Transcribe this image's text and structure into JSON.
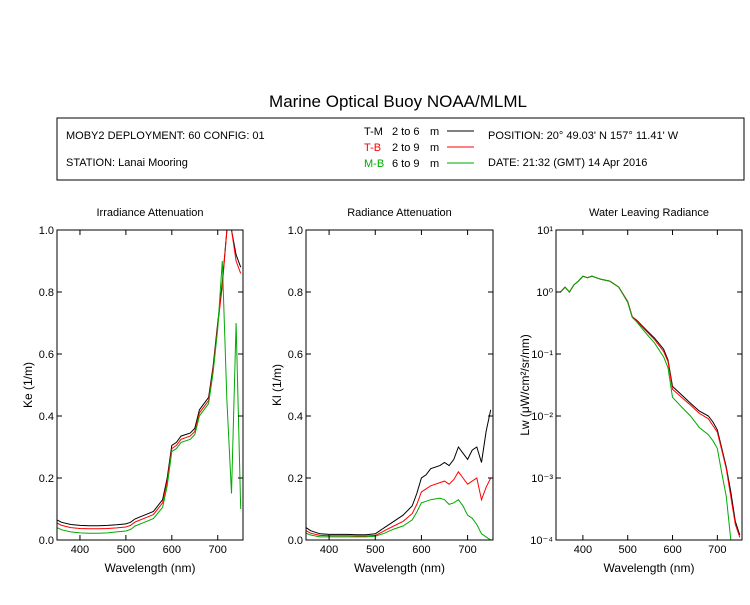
{
  "title": "Marine Optical Buoy NOAA/MLML",
  "info": {
    "deployment": "MOBY2 DEPLOYMENT: 60 CONFIG: 01",
    "station": "STATION: Lanai Mooring",
    "position": "POSITION: 20° 49.03' N   157° 11.41' W",
    "date": "DATE: 21:32 (GMT) 14 Apr 2016",
    "legend": [
      {
        "key": "T-M",
        "range": "2 to 6",
        "unit": "m",
        "color": "#000000"
      },
      {
        "key": "T-B",
        "range": "2 to 9",
        "unit": "m",
        "color": "#ff0000"
      },
      {
        "key": "M-B",
        "range": "6 to 9",
        "unit": "m",
        "color": "#00aa00"
      }
    ]
  },
  "chart_data": [
    {
      "type": "line",
      "title": "Irradiance Attenuation",
      "xlabel": "Wavelength (nm)",
      "ylabel": "Ke  (1/m)",
      "xlim": [
        350,
        755
      ],
      "ylim": [
        0,
        1
      ],
      "xticks": [
        400,
        500,
        600,
        700
      ],
      "yticks": [
        "0.0",
        "0.2",
        "0.4",
        "0.6",
        "0.8",
        "1.0"
      ],
      "ytick_values": [
        0,
        0.2,
        0.4,
        0.6,
        0.8,
        1.0
      ],
      "x": [
        350,
        360,
        380,
        400,
        420,
        440,
        460,
        480,
        500,
        510,
        520,
        540,
        560,
        580,
        590,
        600,
        610,
        620,
        640,
        650,
        660,
        670,
        680,
        690,
        700,
        710,
        720,
        730,
        740,
        750
      ],
      "series": [
        {
          "name": "T-M",
          "color": "#000000",
          "values": [
            0.065,
            0.057,
            0.05,
            0.047,
            0.046,
            0.046,
            0.047,
            0.049,
            0.052,
            0.057,
            0.068,
            0.08,
            0.092,
            0.13,
            0.2,
            0.305,
            0.315,
            0.335,
            0.345,
            0.36,
            0.42,
            0.44,
            0.46,
            0.56,
            0.7,
            0.83,
            1.0,
            1.0,
            0.92,
            0.88
          ]
        },
        {
          "name": "T-B",
          "color": "#ff0000",
          "values": [
            0.055,
            0.047,
            0.04,
            0.037,
            0.036,
            0.036,
            0.037,
            0.039,
            0.042,
            0.047,
            0.058,
            0.07,
            0.082,
            0.12,
            0.19,
            0.295,
            0.305,
            0.325,
            0.335,
            0.35,
            0.41,
            0.43,
            0.45,
            0.55,
            0.69,
            0.82,
            1.0,
            1.0,
            0.9,
            0.86
          ]
        },
        {
          "name": "M-B",
          "color": "#00aa00",
          "values": [
            0.04,
            0.033,
            0.026,
            0.023,
            0.022,
            0.022,
            0.023,
            0.026,
            0.029,
            0.034,
            0.045,
            0.057,
            0.069,
            0.105,
            0.175,
            0.285,
            0.295,
            0.315,
            0.325,
            0.34,
            0.4,
            0.42,
            0.44,
            0.54,
            0.68,
            0.9,
            0.45,
            0.15,
            0.7,
            0.1
          ]
        }
      ]
    },
    {
      "type": "line",
      "title": "Radiance Attenuation",
      "xlabel": "Wavelength (nm)",
      "ylabel": "Kl  (1/m)",
      "xlim": [
        350,
        755
      ],
      "ylim": [
        0,
        1
      ],
      "xticks": [
        400,
        500,
        600,
        700
      ],
      "yticks": [
        "0.0",
        "0.2",
        "0.4",
        "0.6",
        "0.8",
        "1.0"
      ],
      "ytick_values": [
        0,
        0.2,
        0.4,
        0.6,
        0.8,
        1.0
      ],
      "x": [
        350,
        360,
        380,
        400,
        420,
        440,
        460,
        480,
        500,
        510,
        520,
        540,
        560,
        580,
        590,
        600,
        610,
        620,
        640,
        650,
        660,
        670,
        680,
        690,
        700,
        710,
        720,
        730,
        740,
        750
      ],
      "series": [
        {
          "name": "T-M",
          "color": "#000000",
          "values": [
            0.04,
            0.03,
            0.02,
            0.018,
            0.018,
            0.018,
            0.017,
            0.017,
            0.02,
            0.03,
            0.04,
            0.06,
            0.08,
            0.11,
            0.15,
            0.2,
            0.21,
            0.23,
            0.24,
            0.25,
            0.24,
            0.26,
            0.3,
            0.28,
            0.26,
            0.29,
            0.3,
            0.25,
            0.35,
            0.42
          ]
        },
        {
          "name": "T-B",
          "color": "#ff0000",
          "values": [
            0.03,
            0.022,
            0.015,
            0.014,
            0.014,
            0.014,
            0.013,
            0.013,
            0.015,
            0.022,
            0.03,
            0.045,
            0.06,
            0.085,
            0.115,
            0.155,
            0.165,
            0.175,
            0.185,
            0.19,
            0.18,
            0.195,
            0.22,
            0.2,
            0.18,
            0.19,
            0.2,
            0.13,
            0.17,
            0.2
          ]
        },
        {
          "name": "M-B",
          "color": "#00aa00",
          "values": [
            0.022,
            0.016,
            0.01,
            0.01,
            0.01,
            0.01,
            0.01,
            0.01,
            0.012,
            0.017,
            0.022,
            0.035,
            0.045,
            0.065,
            0.09,
            0.12,
            0.125,
            0.13,
            0.135,
            0.13,
            0.115,
            0.12,
            0.13,
            0.11,
            0.08,
            0.07,
            0.05,
            0.02,
            0.01,
            0.0
          ]
        }
      ]
    },
    {
      "type": "line",
      "title": "Water Leaving Radiance",
      "xlabel": "Wavelength (nm)",
      "ylabel": "Lw  (μW/cm²/sr/nm)",
      "yscale": "log",
      "xlim": [
        340,
        755
      ],
      "ylim": [
        0.0001,
        10
      ],
      "xticks": [
        400,
        500,
        600,
        700
      ],
      "yticks": [
        "10⁻⁴",
        "10⁻³",
        "10⁻²",
        "10⁻¹",
        "10⁰",
        "10¹"
      ],
      "ytick_values": [
        0.0001,
        0.001,
        0.01,
        0.1,
        1,
        10
      ],
      "x": [
        350,
        360,
        370,
        380,
        390,
        400,
        410,
        420,
        440,
        460,
        480,
        500,
        510,
        520,
        540,
        560,
        580,
        590,
        600,
        620,
        640,
        660,
        680,
        690,
        700,
        710,
        720,
        730,
        740,
        750
      ],
      "series": [
        {
          "name": "T-M",
          "color": "#000000",
          "values": [
            1.0,
            1.2,
            1.0,
            1.3,
            1.5,
            1.8,
            1.7,
            1.8,
            1.6,
            1.5,
            1.2,
            0.7,
            0.4,
            0.35,
            0.25,
            0.18,
            0.12,
            0.08,
            0.03,
            0.022,
            0.016,
            0.012,
            0.01,
            0.008,
            0.006,
            0.003,
            0.0015,
            0.0006,
            0.0002,
            0.00012
          ]
        },
        {
          "name": "T-B",
          "color": "#ff0000",
          "values": [
            1.0,
            1.2,
            1.0,
            1.3,
            1.5,
            1.8,
            1.7,
            1.8,
            1.6,
            1.5,
            1.2,
            0.7,
            0.4,
            0.34,
            0.24,
            0.17,
            0.11,
            0.075,
            0.027,
            0.02,
            0.015,
            0.011,
            0.009,
            0.007,
            0.0055,
            0.0028,
            0.0014,
            0.0005,
            0.00018,
            0.00011
          ]
        },
        {
          "name": "M-B",
          "color": "#00aa00",
          "values": [
            1.0,
            1.2,
            1.0,
            1.3,
            1.5,
            1.8,
            1.7,
            1.8,
            1.6,
            1.5,
            1.2,
            0.68,
            0.39,
            0.33,
            0.22,
            0.15,
            0.09,
            0.06,
            0.02,
            0.014,
            0.01,
            0.0065,
            0.005,
            0.004,
            0.003,
            0.0012,
            0.0005,
            0.0001,
            0.0001,
            0.0001
          ]
        }
      ]
    }
  ]
}
